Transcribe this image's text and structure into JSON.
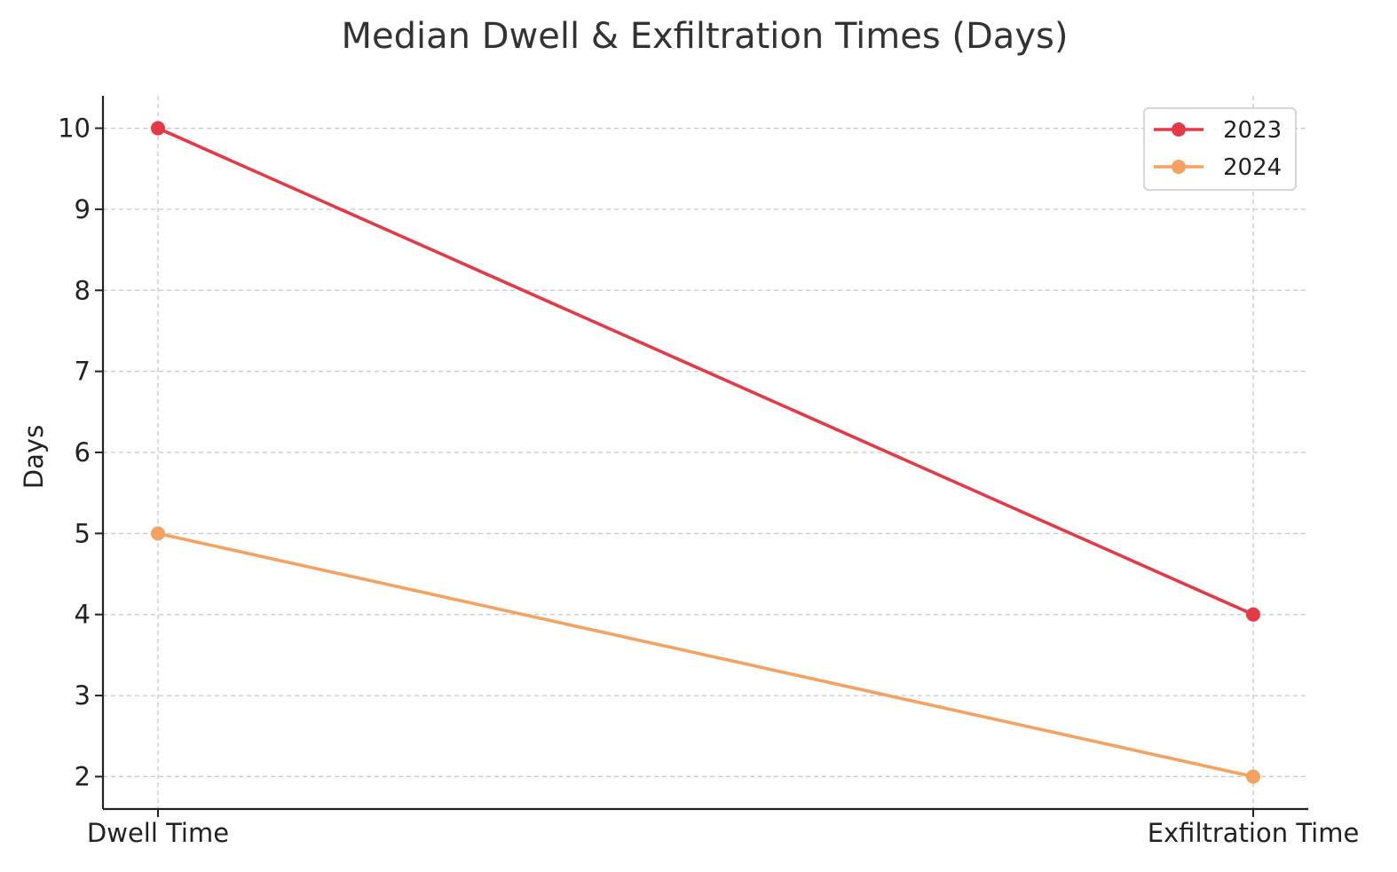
{
  "chart_data": {
    "type": "line",
    "title": "Median Dwell & Exfiltration Times (Days)",
    "xlabel": "",
    "ylabel": "Days",
    "categories": [
      "Dwell Time",
      "Exfiltration Time"
    ],
    "yticks": [
      2,
      3,
      4,
      5,
      6,
      7,
      8,
      9,
      10
    ],
    "ylim": [
      1.6,
      10.4
    ],
    "grid": true,
    "legend_position": "top-right",
    "series": [
      {
        "name": "2023",
        "values": [
          10,
          4
        ],
        "color": "#e63946"
      },
      {
        "name": "2024",
        "values": [
          5,
          2
        ],
        "color": "#f4a261"
      }
    ]
  }
}
